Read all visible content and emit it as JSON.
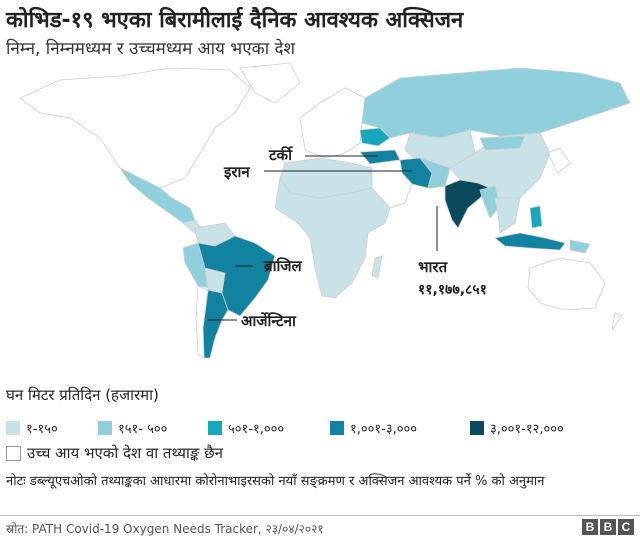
{
  "title": "कोभिड-१९ भएका बिरामीलाई दैनिक आवश्यक अक्सिजन",
  "subtitle": "निम्न, निम्नमध्यम र उच्चमध्यम आय भएका देश",
  "map_labels": {
    "turkey": "टर्की",
    "iran": "इरान",
    "brazil": "ब्राजिल",
    "argentina": "आर्जेन्टिना",
    "india": "भारत",
    "india_value": "११,१७७,८५१"
  },
  "legend": {
    "title": "घन मिटर प्रतिदिन (हजारमा)",
    "items": [
      {
        "label": "१-१५०",
        "color": "#c8e2e7"
      },
      {
        "label": "१५१- ५००",
        "color": "#8fd0dc"
      },
      {
        "label": "५०१-१,०००",
        "color": "#17a8bf"
      },
      {
        "label": "१,००१-३,०००",
        "color": "#1282a1"
      },
      {
        "label": "३,००१-१२,०००",
        "color": "#0a4a5c"
      }
    ],
    "no_data": "उच्च आय भएको देश वा तथ्याङ्क छैन"
  },
  "note": "नोटः डब्ल्यूएचओको तथ्याङ्कका आधारमा कोरोनाभाइरसको नयाँ सङ्क्रमण र अक्सिजन आवश्यक पर्ने % को अनुमान",
  "source": "स्रोत: PATH Covid-19  Oxygen Needs Tracker, २३/०४/२०२१",
  "logo": [
    "B",
    "B",
    "C"
  ]
}
